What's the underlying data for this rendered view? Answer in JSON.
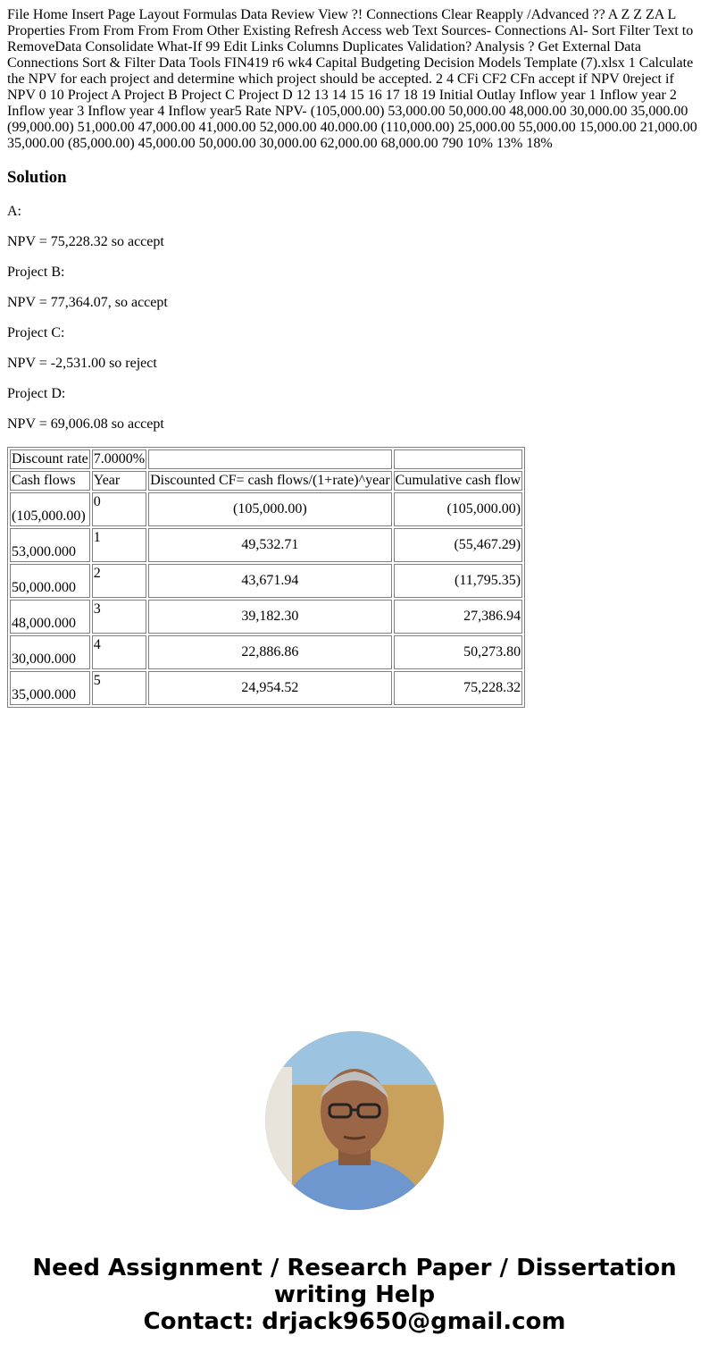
{
  "question": "File Home Insert Page Layout Formulas Data Review View ?! Connections Clear Reapply /Advanced ?? A Z Z ZA L Properties From From From From Other Existing Refresh Access web Text Sources- Connections Al- Sort Filter Text to RemoveData Consolidate What-If 99 Edit Links Columns Duplicates Validation? Analysis ? Get External Data Connections Sort & Filter Data Tools FIN419 r6 wk4 Capital Budgeting Decision Models Template (7).xlsx 1 Calculate the NPV for each project and determine which project should be accepted. 2 4 CFi CF2 CFn accept if NPV 0reject if NPV 0 10 Project A Project B Project C Project D 12 13 14 15 16 17 18 19 Initial Outlay Inflow year 1 Inflow year 2 Inflow year 3 Inflow year 4 Inflow year5 Rate NPV- (105,000.00) 53,000.00 50,000.00 48,000.00 30,000.00 35,000.00 (99,000.00) 51,000.00 47,000.00 41,000.00 52,000.00 40.000.00 (110,000.00) 25,000.00 55,000.00 15,000.00 21,000.00 35,000.00 (85,000.00) 45,000.00 50,000.00 30,000.00 62,000.00 68,000.00 790 10% 13% 18%",
  "solution_heading": "Solution",
  "answers": [
    "A:",
    "NPV = 75,228.32 so accept",
    "Project B:",
    "NPV = 77,364.07, so accept",
    "Project C:",
    "NPV = -2,531.00 so reject",
    "Project D:",
    "NPV = 69,006.08 so accept"
  ],
  "table": {
    "rate_label": "Discount rate",
    "rate_value": "7.0000%",
    "headers": [
      "Cash flows",
      "Year",
      "Discounted CF= cash flows/(1+rate)^year",
      "Cumulative cash flow"
    ],
    "rows": [
      [
        "(105,000.00)",
        "0",
        "(105,000.00)",
        "(105,000.00)"
      ],
      [
        "53,000.000",
        "1",
        "49,532.71",
        "(55,467.29)"
      ],
      [
        "50,000.000",
        "2",
        "43,671.94",
        "(11,795.35)"
      ],
      [
        "48,000.000",
        "3",
        "39,182.30",
        "27,386.94"
      ],
      [
        "30,000.000",
        "4",
        "22,886.86",
        "50,273.80"
      ],
      [
        "35,000.000",
        "5",
        "24,954.52",
        "75,228.32"
      ]
    ]
  },
  "banner": {
    "line1": "Need Assignment / Research Paper / Dissertation",
    "line2": "writing Help",
    "line3": "Contact: drjack9650@gmail.com"
  }
}
